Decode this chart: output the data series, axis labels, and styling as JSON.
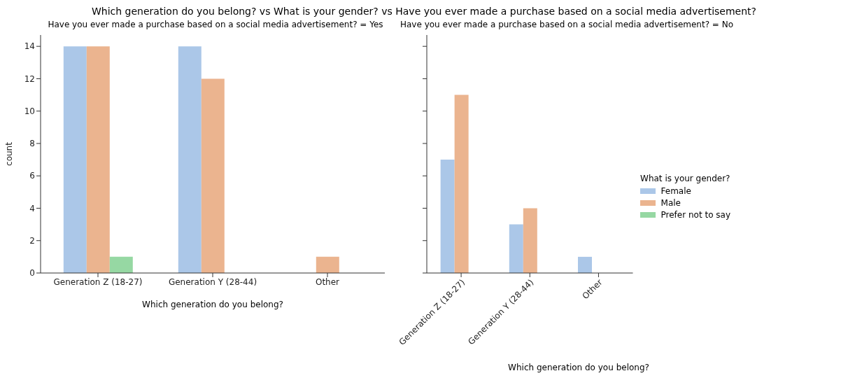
{
  "chart_data": [
    {
      "type": "bar",
      "title": "Which generation do you belong? vs What is your gender? vs Have you ever made a purchase based on a social media advertisement?",
      "subtitle": "Have you ever made a purchase based on a social media advertisement? = Yes",
      "xlabel": "Which generation do you belong?",
      "ylabel": "count",
      "categories": [
        "Generation Z (18-27)",
        "Generation Y (28-44)",
        "Other"
      ],
      "series": [
        {
          "color": "#abc7e8",
          "values": [
            14,
            14,
            null
          ]
        },
        {
          "color": "#ebb48f",
          "values": [
            14,
            12,
            1
          ]
        },
        {
          "color": "#96d8a3",
          "values": [
            1,
            null,
            null
          ]
        }
      ],
      "ylim": [
        0,
        14.7
      ],
      "yticks": [
        0,
        2,
        4,
        6,
        8,
        10,
        12,
        14
      ],
      "grid": false,
      "legend": false
    },
    {
      "type": "bar",
      "subtitle": "Have you ever made a purchase based on a social media advertisement? = No",
      "xlabel": "Which generation do you belong?",
      "legend_title": "What is your gender?",
      "categories": [
        "Generation Z (18-27)",
        "Generation Y (28-44)",
        "Other"
      ],
      "series": [
        {
          "name": "Female",
          "color": "#abc7e8",
          "values": [
            7,
            3,
            1
          ]
        },
        {
          "name": "Male",
          "color": "#ebb48f",
          "values": [
            11,
            4,
            null
          ]
        },
        {
          "name": "Prefer not to say",
          "color": "#96d8a3",
          "values": [
            null,
            null,
            null
          ]
        }
      ],
      "ylim": [
        0,
        14.7
      ],
      "yticks": [
        0,
        2,
        4,
        6,
        8,
        10,
        12,
        14
      ],
      "tick_labels": "x",
      "grid": false,
      "legend": "right"
    }
  ]
}
